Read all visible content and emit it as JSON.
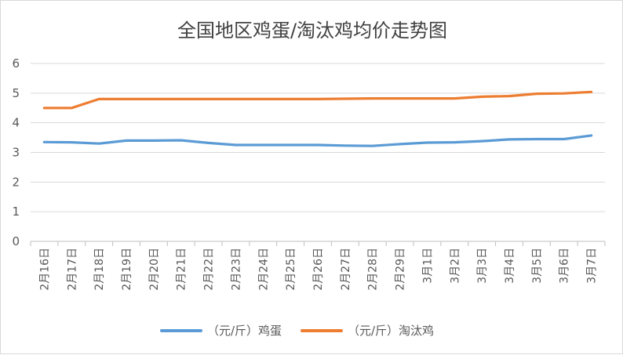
{
  "chart_data": {
    "type": "line",
    "title": "全国地区鸡蛋/淘汰鸡均价走势图",
    "xlabel": "",
    "ylabel": "",
    "ylim": [
      0,
      6
    ],
    "yticks": [
      0,
      1,
      2,
      3,
      4,
      5,
      6
    ],
    "grid": true,
    "legend_position": "bottom",
    "categories": [
      "2月16日",
      "2月17日",
      "2月18日",
      "2月19日",
      "2月20日",
      "2月21日",
      "2月22日",
      "2月23日",
      "2月24日",
      "2月25日",
      "2月26日",
      "2月27日",
      "2月28日",
      "2月29日",
      "3月1日",
      "3月2日",
      "3月3日",
      "3月4日",
      "3月5日",
      "3月6日",
      "3月7日"
    ],
    "series": [
      {
        "name": "（元/斤）鸡蛋",
        "color": "#5b9bd5",
        "values": [
          3.35,
          3.34,
          3.3,
          3.4,
          3.4,
          3.41,
          3.32,
          3.25,
          3.25,
          3.25,
          3.25,
          3.23,
          3.22,
          3.28,
          3.33,
          3.34,
          3.38,
          3.44,
          3.45,
          3.45,
          3.57
        ]
      },
      {
        "name": "（元/斤）淘汰鸡",
        "color": "#ed7d31",
        "values": [
          4.5,
          4.5,
          4.8,
          4.8,
          4.8,
          4.8,
          4.8,
          4.8,
          4.8,
          4.8,
          4.8,
          4.81,
          4.82,
          4.82,
          4.82,
          4.82,
          4.88,
          4.9,
          4.98,
          4.99,
          5.04
        ]
      }
    ],
    "colors": {
      "grid": "#d9d9d9",
      "axis": "#bfbfbf",
      "text": "#595959"
    }
  }
}
